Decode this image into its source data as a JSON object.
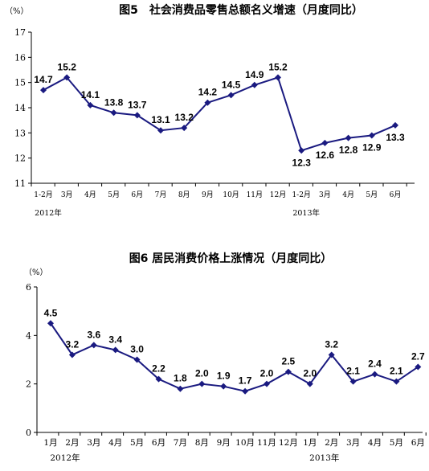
{
  "chart_data": [
    {
      "type": "line",
      "title": "图5　社会消费品零售总额名义增速（月度同比）",
      "ylabel": "（%）",
      "ylim": [
        11,
        17
      ],
      "yticks": [
        11,
        12,
        13,
        14,
        15,
        16,
        17
      ],
      "categories": [
        "1-2月",
        "3月",
        "4月",
        "5月",
        "6月",
        "7月",
        "8月",
        "9月",
        "10月",
        "11月",
        "12月",
        "1-2月",
        "3月",
        "4月",
        "5月",
        "6月"
      ],
      "year_labels": [
        {
          "label": "2012年",
          "index": 0
        },
        {
          "label": "2013年",
          "index": 11
        }
      ],
      "series": [
        {
          "values": [
            14.7,
            15.2,
            14.1,
            13.8,
            13.7,
            13.1,
            13.2,
            14.2,
            14.5,
            14.9,
            15.2,
            12.3,
            12.6,
            12.8,
            12.9,
            13.3
          ]
        }
      ],
      "data_labels": [
        "14.7",
        "15.2",
        "14.1",
        "13.8",
        "13.7",
        "13.1",
        "13.2",
        "14.2",
        "14.5",
        "14.9",
        "15.2",
        "12.3",
        "12.6",
        "12.8",
        "12.9",
        "13.3"
      ],
      "grid": false,
      "color": "#1a1a80"
    },
    {
      "type": "line",
      "title": "图6 居民消费价格上涨情况（月度同比）",
      "ylabel": "（%）",
      "ylim": [
        0,
        6
      ],
      "yticks": [
        0,
        2,
        4,
        6
      ],
      "categories": [
        "1月",
        "2月",
        "3月",
        "4月",
        "5月",
        "6月",
        "7月",
        "8月",
        "9月",
        "10月",
        "11月",
        "12月",
        "1月",
        "2月",
        "3月",
        "4月",
        "5月",
        "6月"
      ],
      "year_labels": [
        {
          "label": "2012年",
          "index": 0
        },
        {
          "label": "2013年",
          "index": 12
        }
      ],
      "series": [
        {
          "values": [
            4.5,
            3.2,
            3.6,
            3.4,
            3.0,
            2.2,
            1.8,
            2.0,
            1.9,
            1.7,
            2.0,
            2.5,
            2.0,
            3.2,
            2.1,
            2.4,
            2.1,
            2.7
          ]
        }
      ],
      "data_labels": [
        "4.5",
        "3.2",
        "3.6",
        "3.4",
        "3.0",
        "2.2",
        "1.8",
        "2.0",
        "1.9",
        "1.7",
        "2.0",
        "2.5",
        "2.0",
        "3.2",
        "2.1",
        "2.4",
        "2.1",
        "2.7"
      ],
      "grid": false,
      "color": "#1a1a80"
    }
  ]
}
